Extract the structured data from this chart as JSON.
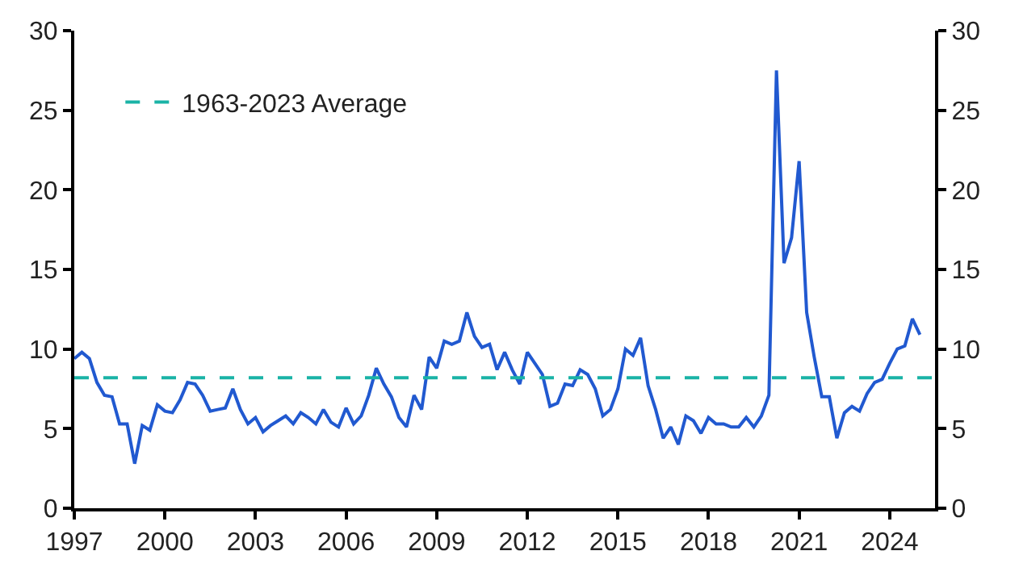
{
  "chart_data": {
    "type": "line",
    "x": [
      1997,
      1997.25,
      1997.5,
      1997.75,
      1998,
      1998.25,
      1998.5,
      1998.75,
      1999,
      1999.25,
      1999.5,
      1999.75,
      2000,
      2000.25,
      2000.5,
      2000.75,
      2001,
      2001.25,
      2001.5,
      2001.75,
      2002,
      2002.25,
      2002.5,
      2002.75,
      2003,
      2003.25,
      2003.5,
      2003.75,
      2004,
      2004.25,
      2004.5,
      2004.75,
      2005,
      2005.25,
      2005.5,
      2005.75,
      2006,
      2006.25,
      2006.5,
      2006.75,
      2007,
      2007.25,
      2007.5,
      2007.75,
      2008,
      2008.25,
      2008.5,
      2008.75,
      2009,
      2009.25,
      2009.5,
      2009.75,
      2010,
      2010.25,
      2010.5,
      2010.75,
      2011,
      2011.25,
      2011.5,
      2011.75,
      2012,
      2012.25,
      2012.5,
      2012.75,
      2013,
      2013.25,
      2013.5,
      2013.75,
      2014,
      2014.25,
      2014.5,
      2014.75,
      2015,
      2015.25,
      2015.5,
      2015.75,
      2016,
      2016.25,
      2016.5,
      2016.75,
      2017,
      2017.25,
      2017.5,
      2017.75,
      2018,
      2018.25,
      2018.5,
      2018.75,
      2019,
      2019.25,
      2019.5,
      2019.75,
      2020,
      2020.25,
      2020.5,
      2020.75,
      2021,
      2021.25,
      2021.5,
      2021.75,
      2022,
      2022.25,
      2022.5,
      2022.75,
      2023,
      2023.25,
      2023.5,
      2023.75,
      2024,
      2024.25,
      2024.5,
      2024.75,
      2025
    ],
    "series": [
      {
        "color": "#2159d0",
        "values": [
          9.4,
          9.8,
          9.4,
          7.9,
          7.1,
          7.0,
          5.3,
          5.3,
          2.8,
          5.2,
          4.9,
          6.5,
          6.1,
          6.0,
          6.8,
          7.9,
          7.8,
          7.1,
          6.1,
          6.2,
          6.3,
          7.5,
          6.2,
          5.3,
          5.7,
          4.8,
          5.2,
          5.5,
          5.8,
          5.3,
          6.0,
          5.7,
          5.3,
          6.2,
          5.4,
          5.1,
          6.3,
          5.3,
          5.8,
          7.1,
          8.8,
          7.8,
          7.0,
          5.7,
          5.1,
          7.1,
          6.2,
          9.5,
          8.8,
          10.5,
          10.3,
          10.5,
          12.3,
          10.8,
          10.1,
          10.3,
          8.7,
          9.8,
          8.7,
          7.8,
          9.8,
          9.1,
          8.4,
          6.4,
          6.6,
          7.8,
          7.7,
          8.7,
          8.4,
          7.5,
          5.8,
          6.2,
          7.5,
          10.0,
          9.6,
          10.7,
          7.7,
          6.2,
          4.4,
          5.1,
          4.0,
          5.8,
          5.5,
          4.7,
          5.7,
          5.3,
          5.3,
          5.1,
          5.1,
          5.7,
          5.1,
          5.8,
          7.1,
          27.5,
          15.4,
          17.0,
          21.8,
          12.3,
          9.5,
          7.0,
          7.0,
          4.4,
          6.0,
          6.4,
          6.1,
          7.2,
          7.9,
          8.1,
          9.1,
          10.0,
          10.2,
          11.9,
          10.9
        ]
      }
    ],
    "xlim": [
      1997,
      2025.5
    ],
    "xticks": [
      1997,
      2000,
      2003,
      2006,
      2009,
      2012,
      2015,
      2018,
      2021,
      2024
    ],
    "ylim": [
      0,
      30
    ],
    "yticks": [
      0,
      5,
      10,
      15,
      20,
      25,
      30
    ],
    "y2lim": [
      0,
      30
    ],
    "y2ticks": [
      0,
      5,
      10,
      15,
      20,
      25,
      30
    ],
    "ref_lines": [
      {
        "axis": "y",
        "value": 8.2,
        "label": "1963-2023 Average",
        "color": "#1ab3a6",
        "line_style": "dashed"
      }
    ],
    "legend": "top left"
  }
}
